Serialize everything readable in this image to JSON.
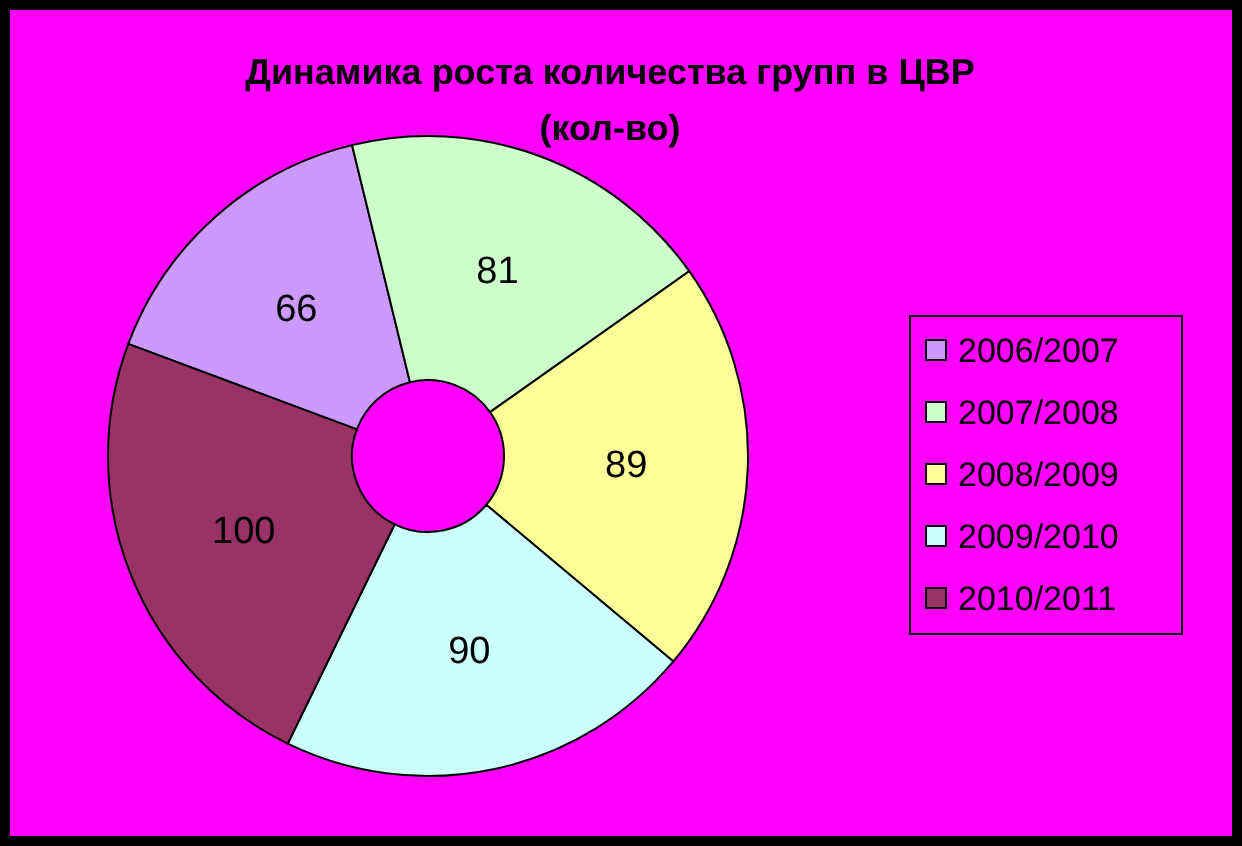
{
  "chart_data": {
    "type": "donut",
    "title": "Динамика роста количества групп в ЦВР",
    "subtitle": "(кол-во)",
    "categories": [
      "2006/2007",
      "2007/2008",
      "2008/2009",
      "2009/2010",
      "2010/2011"
    ],
    "values": [
      66,
      81,
      89,
      90,
      100
    ],
    "colors": [
      "#cc99ff",
      "#ccffcc",
      "#ffff99",
      "#ccffff",
      "#993366"
    ],
    "data_labels": true,
    "legend": "right"
  }
}
